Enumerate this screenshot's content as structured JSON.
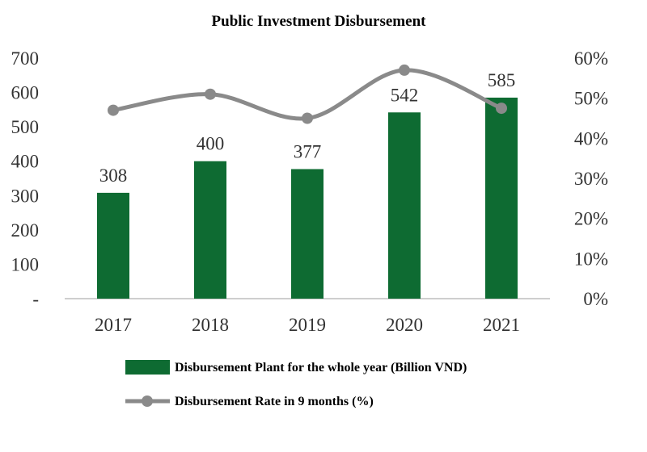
{
  "chart_data": {
    "type": "bar",
    "title": "Public Investment Disbursement",
    "categories": [
      "2017",
      "2018",
      "2019",
      "2020",
      "2021"
    ],
    "series": [
      {
        "name": "Disbursement Plant for the whole year (Billion VND)",
        "kind": "bar",
        "axis": "left",
        "values": [
          308,
          400,
          377,
          542,
          585
        ],
        "labels": [
          "308",
          "400",
          "377",
          "542",
          "585"
        ],
        "color": "#0e6b32"
      },
      {
        "name": "Disbursement Rate in 9 months (%)",
        "kind": "line",
        "axis": "right",
        "values": [
          47,
          51,
          45,
          57,
          47.5
        ],
        "color": "#8a8a8a"
      }
    ],
    "y_left": {
      "min": 0,
      "max": 700,
      "ticks": [
        0,
        100,
        200,
        300,
        400,
        500,
        600,
        700
      ],
      "tick_labels": [
        "-",
        "100",
        "200",
        "300",
        "400",
        "500",
        "600",
        "700"
      ]
    },
    "y_right": {
      "min": 0,
      "max": 60,
      "ticks": [
        0,
        10,
        20,
        30,
        40,
        50,
        60
      ],
      "tick_labels": [
        "0%",
        "10%",
        "20%",
        "30%",
        "40%",
        "50%",
        "60%"
      ]
    },
    "grid": false,
    "legend_position": "bottom"
  }
}
